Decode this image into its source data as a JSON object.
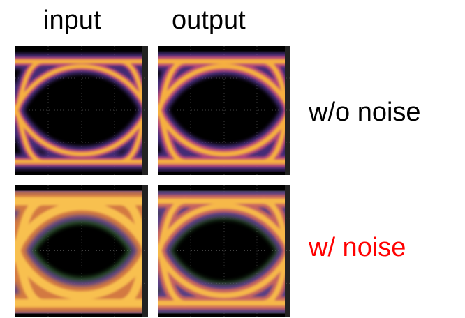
{
  "columns": [
    "input",
    "output"
  ],
  "rows": [
    {
      "label": "w/o noise"
    },
    {
      "label": "w/ noise"
    }
  ]
}
